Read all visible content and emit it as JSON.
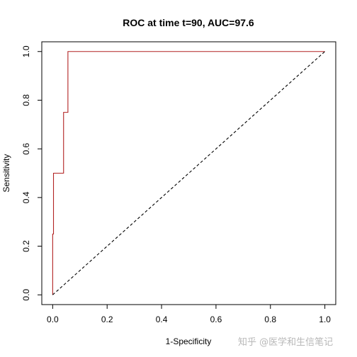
{
  "chart_data": {
    "type": "line",
    "title": "ROC at time t=90, AUC=97.6",
    "xlabel": "1-Specificity",
    "ylabel": "Sensitivity",
    "xlim": [
      -0.04,
      1.04
    ],
    "ylim": [
      -0.04,
      1.04
    ],
    "xticks": [
      0.0,
      0.2,
      0.4,
      0.6,
      0.8,
      1.0
    ],
    "xtick_labels": [
      "0.0",
      "0.2",
      "0.4",
      "0.6",
      "0.8",
      "1.0"
    ],
    "yticks": [
      0.0,
      0.2,
      0.4,
      0.6,
      0.8,
      1.0
    ],
    "ytick_labels": [
      "0.0",
      "0.2",
      "0.4",
      "0.6",
      "0.8",
      "1.0"
    ],
    "grid": false,
    "series": [
      {
        "color": "#b22222",
        "style": "step",
        "x": [
          0.0,
          0.0,
          0.003,
          0.003,
          0.04,
          0.04,
          0.056,
          0.056,
          1.0
        ],
        "y": [
          0.0,
          0.25,
          0.25,
          0.5,
          0.5,
          0.75,
          0.75,
          1.0,
          1.0
        ]
      },
      {
        "color": "#000000",
        "style": "dashed",
        "x": [
          0.0,
          1.0
        ],
        "y": [
          0.0,
          1.0
        ]
      }
    ]
  },
  "watermark": "知乎 @医学和生信笔记"
}
